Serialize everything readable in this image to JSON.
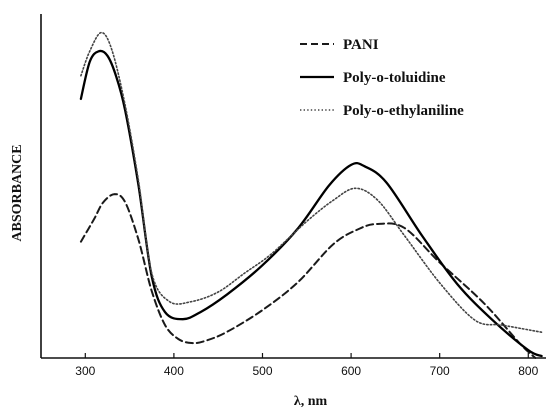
{
  "chart_data": {
    "type": "line",
    "title": "",
    "xlabel": "λ, nm",
    "ylabel": "ABSORBANCE",
    "xlim": [
      250,
      820
    ],
    "ylim": [
      0,
      1
    ],
    "xticks": [
      300,
      400,
      500,
      600,
      700,
      800
    ],
    "grid": false,
    "legend_position": "top-right",
    "series": [
      {
        "name": "PANI",
        "style": "dashed",
        "color": "#1a1a1a",
        "x": [
          295,
          310,
          320,
          333,
          345,
          360,
          375,
          390,
          405,
          420,
          435,
          460,
          500,
          540,
          580,
          610,
          630,
          660,
          700,
          750,
          790,
          808
        ],
        "y": [
          0.342,
          0.409,
          0.457,
          0.482,
          0.458,
          0.348,
          0.197,
          0.097,
          0.056,
          0.044,
          0.05,
          0.077,
          0.141,
          0.223,
          0.335,
          0.381,
          0.394,
          0.383,
          0.281,
          0.161,
          0.044,
          0.0
        ]
      },
      {
        "name": "Poly-o-toluidine",
        "style": "solid",
        "color": "#000000",
        "x": [
          295,
          305,
          315,
          325,
          335,
          345,
          360,
          375,
          390,
          410,
          430,
          460,
          500,
          540,
          575,
          600,
          615,
          640,
          680,
          720,
          760,
          800,
          815
        ],
        "y": [
          0.762,
          0.871,
          0.902,
          0.889,
          0.827,
          0.728,
          0.508,
          0.24,
          0.135,
          0.114,
          0.135,
          0.187,
          0.273,
          0.381,
          0.507,
          0.568,
          0.564,
          0.516,
          0.36,
          0.217,
          0.111,
          0.023,
          0.006
        ]
      },
      {
        "name": "Poly-o-ethylaniline",
        "style": "dotted",
        "color": "#444444",
        "x": [
          295,
          305,
          318,
          330,
          345,
          360,
          375,
          395,
          420,
          450,
          480,
          510,
          550,
          580,
          605,
          630,
          660,
          700,
          740,
          770,
          800,
          815
        ],
        "y": [
          0.83,
          0.902,
          0.957,
          0.906,
          0.743,
          0.521,
          0.25,
          0.166,
          0.166,
          0.194,
          0.25,
          0.306,
          0.402,
          0.464,
          0.499,
          0.464,
          0.361,
          0.221,
          0.111,
          0.097,
          0.083,
          0.076
        ]
      }
    ]
  }
}
